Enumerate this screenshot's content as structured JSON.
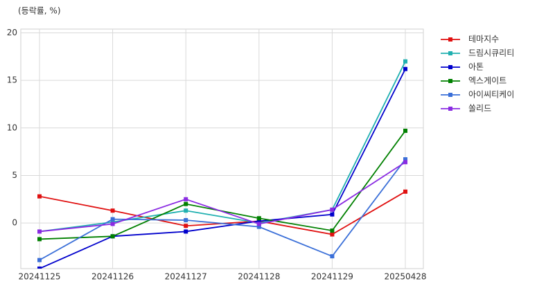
{
  "chart_data": {
    "type": "line",
    "y_label": "(등락률, %)",
    "categories": [
      "20241125",
      "20241126",
      "20241127",
      "20241128",
      "20241129",
      "20250428"
    ],
    "series": [
      {
        "name": "테마지수",
        "color": "#e01010",
        "values": [
          2.8,
          1.3,
          -0.3,
          0.2,
          -1.2,
          3.3
        ]
      },
      {
        "name": "드림시큐리티",
        "color": "#20b0b0",
        "values": [
          -0.9,
          0.1,
          1.3,
          0.0,
          1.4,
          17.0
        ]
      },
      {
        "name": "아톤",
        "color": "#0000cc",
        "values": [
          -4.8,
          -1.4,
          -0.9,
          0.2,
          0.9,
          16.2
        ]
      },
      {
        "name": "엑스게이트",
        "color": "#008000",
        "values": [
          -1.7,
          -1.4,
          2.0,
          0.5,
          -0.8,
          9.7
        ]
      },
      {
        "name": "아이씨티케이",
        "color": "#3a6fd8",
        "values": [
          -3.9,
          0.4,
          0.3,
          -0.4,
          -3.5,
          6.7
        ]
      },
      {
        "name": "쏠리드",
        "color": "#8a2be2",
        "values": [
          -0.9,
          -0.1,
          2.5,
          -0.1,
          1.4,
          6.4
        ]
      }
    ],
    "ylim": [
      -4.8,
      20.4
    ],
    "yticks": [
      0,
      5,
      10,
      15,
      20
    ],
    "grid": true,
    "legend": "outside-right"
  }
}
